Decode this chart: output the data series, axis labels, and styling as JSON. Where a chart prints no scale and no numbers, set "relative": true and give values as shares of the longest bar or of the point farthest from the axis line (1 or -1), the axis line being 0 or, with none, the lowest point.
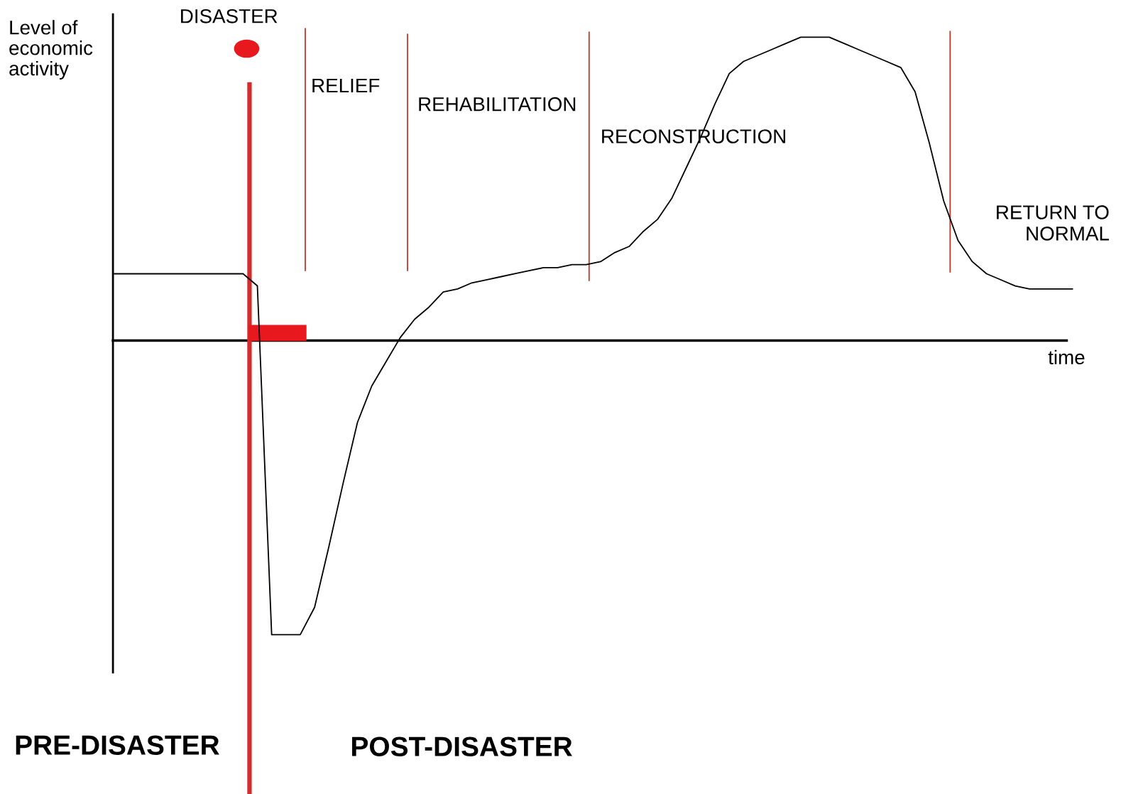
{
  "chart_data": {
    "type": "line",
    "relative": true,
    "xlabel": "time",
    "ylabel": "Level of\neconomic\nactivity",
    "tick_labels": false,
    "legend": false,
    "marker": "none",
    "line_style": "solid",
    "categories": [
      null,
      null,
      null,
      null,
      null,
      null,
      null,
      null,
      null,
      null,
      null,
      null,
      null,
      null,
      null,
      null,
      null,
      null,
      null,
      null,
      null,
      null,
      null,
      null,
      null,
      null,
      null,
      null,
      null,
      null,
      null,
      null,
      null,
      null,
      null,
      null,
      null,
      null,
      null,
      null,
      null,
      null,
      null,
      null,
      null,
      null,
      null,
      null,
      null,
      null,
      null,
      null,
      null,
      null,
      null,
      null,
      null,
      null,
      null,
      null,
      null,
      null,
      null,
      null,
      null,
      null,
      null,
      null
    ],
    "series": [
      {
        "color": "#000000",
        "values": [
          0.22,
          0.22,
          0.22,
          0.22,
          0.22,
          0.22,
          0.22,
          0.22,
          0.22,
          0.22,
          0.18,
          -0.97,
          -0.97,
          -0.97,
          -0.88,
          -0.68,
          -0.47,
          -0.27,
          -0.15,
          -0.07,
          0.01,
          0.07,
          0.11,
          0.16,
          0.17,
          0.19,
          0.2,
          0.21,
          0.22,
          0.23,
          0.24,
          0.24,
          0.25,
          0.25,
          0.26,
          0.29,
          0.31,
          0.36,
          0.4,
          0.47,
          0.57,
          0.67,
          0.78,
          0.88,
          0.92,
          0.94,
          0.96,
          0.98,
          1.0,
          1.0,
          1.0,
          0.98,
          0.96,
          0.94,
          0.92,
          0.9,
          0.82,
          0.65,
          0.46,
          0.33,
          0.26,
          0.22,
          0.2,
          0.18,
          0.17,
          0.17,
          0.17,
          0.17
        ]
      }
    ],
    "annotations": [
      "DISASTER",
      "RELIEF",
      "REHABILITATION",
      "RECONSTRUCTION",
      "RETURN TO\nNORMAL",
      "PRE-DISASTER",
      "POST-DISASTER"
    ]
  }
}
